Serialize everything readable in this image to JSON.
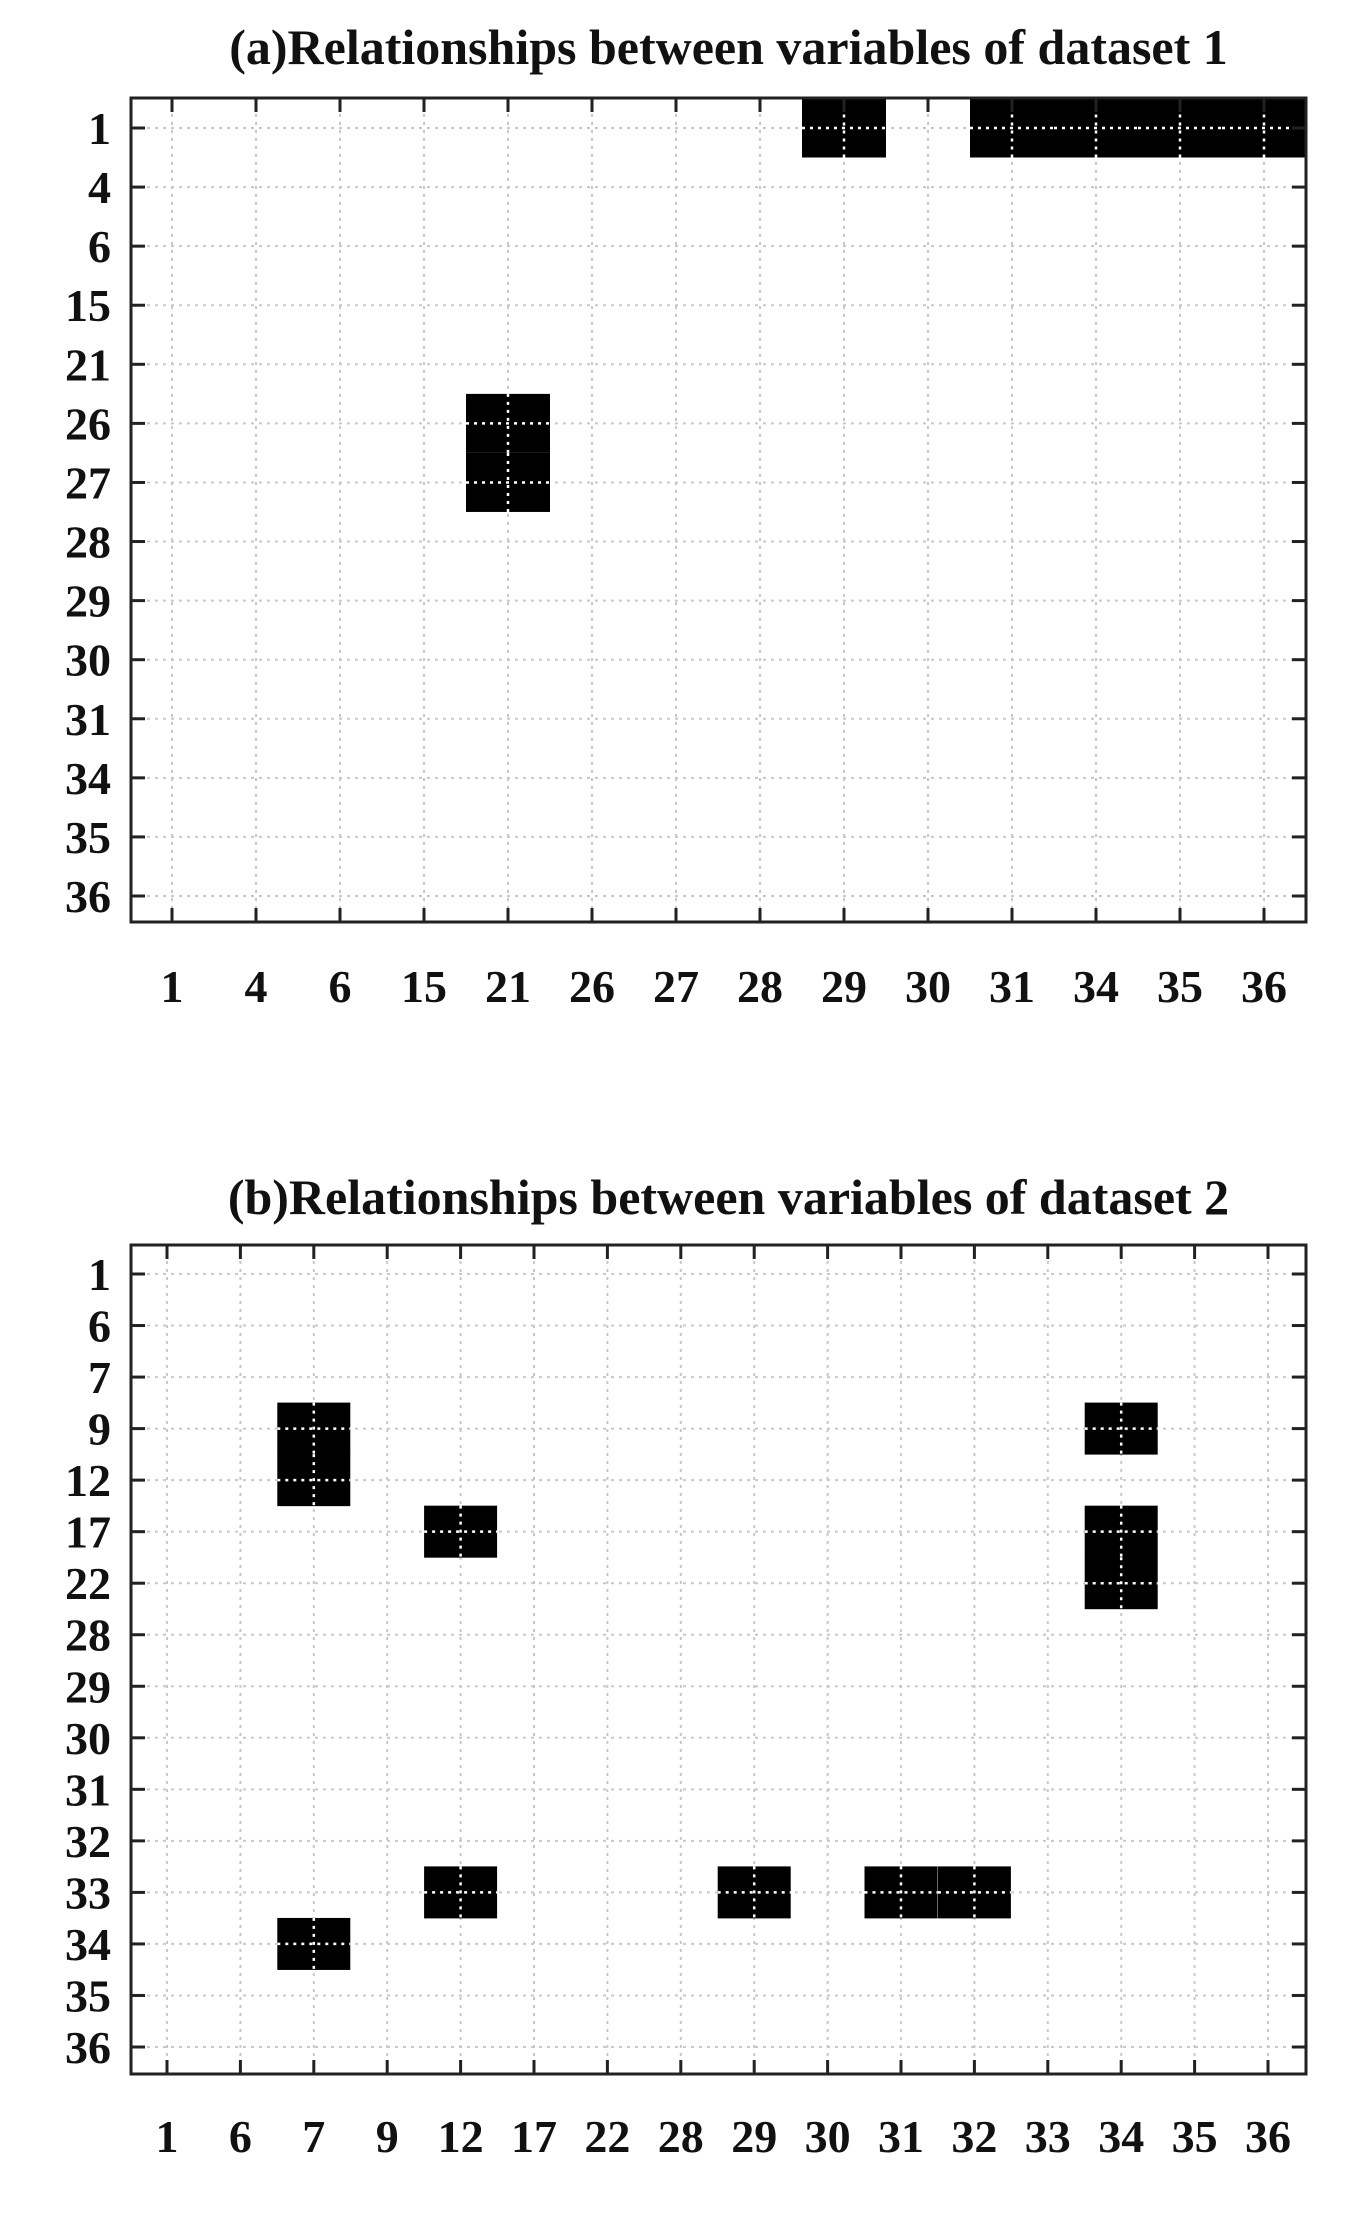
{
  "chart_data": [
    {
      "type": "heatmap",
      "title": "(a)Relationships between variables of dataset 1",
      "x_labels": [
        "1",
        "4",
        "6",
        "15",
        "21",
        "26",
        "27",
        "28",
        "29",
        "30",
        "31",
        "34",
        "35",
        "36"
      ],
      "y_labels": [
        "1",
        "4",
        "6",
        "15",
        "21",
        "26",
        "27",
        "28",
        "29",
        "30",
        "31",
        "34",
        "35",
        "36"
      ],
      "cell_color": "#000000",
      "cells": [
        {
          "x": "29",
          "y": "1"
        },
        {
          "x": "31",
          "y": "1"
        },
        {
          "x": "34",
          "y": "1"
        },
        {
          "x": "35",
          "y": "1"
        },
        {
          "x": "36",
          "y": "1"
        },
        {
          "x": "21",
          "y": "26"
        },
        {
          "x": "21",
          "y": "27"
        }
      ],
      "grid": true
    },
    {
      "type": "heatmap",
      "title": "(b)Relationships between variables of dataset 2",
      "x_labels": [
        "1",
        "6",
        "7",
        "9",
        "12",
        "17",
        "22",
        "28",
        "29",
        "30",
        "31",
        "32",
        "33",
        "34",
        "35",
        "36"
      ],
      "y_labels": [
        "1",
        "6",
        "7",
        "9",
        "12",
        "17",
        "22",
        "28",
        "29",
        "30",
        "31",
        "32",
        "33",
        "34",
        "35",
        "36"
      ],
      "cell_color": "#000000",
      "cells": [
        {
          "x": "7",
          "y": "9"
        },
        {
          "x": "7",
          "y": "12"
        },
        {
          "x": "12",
          "y": "17"
        },
        {
          "x": "34",
          "y": "9"
        },
        {
          "x": "34",
          "y": "17"
        },
        {
          "x": "34",
          "y": "22"
        },
        {
          "x": "12",
          "y": "33"
        },
        {
          "x": "29",
          "y": "33"
        },
        {
          "x": "31",
          "y": "33"
        },
        {
          "x": "32",
          "y": "33"
        },
        {
          "x": "7",
          "y": "34"
        }
      ],
      "grid": true
    }
  ]
}
